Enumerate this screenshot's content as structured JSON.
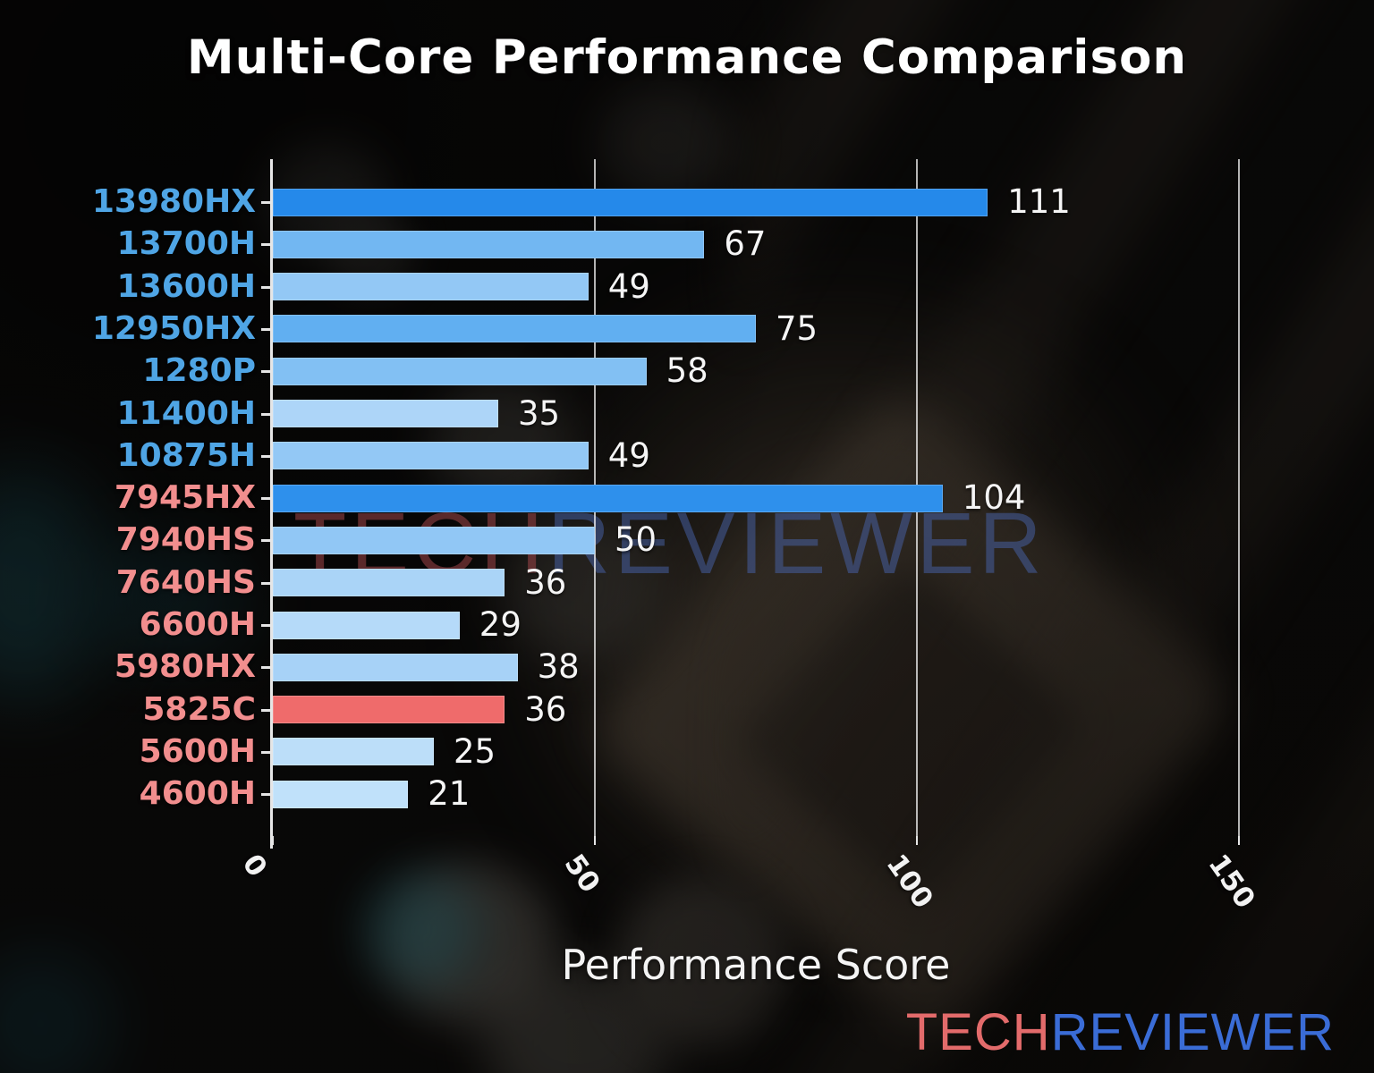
{
  "title": "Multi-Core Performance Comparison",
  "watermark": {
    "tech": "TECH",
    "reviewer": "REVIEWER",
    "tech_color": "rgba(158,70,72,0.55)",
    "reviewer_color": "rgba(72,100,172,0.5)"
  },
  "logo": {
    "tech": "TECH",
    "reviewer": "REVIEWER",
    "tech_color": "#e36b6b",
    "reviewer_color": "#3a6cd6"
  },
  "chart_data": {
    "type": "bar",
    "orientation": "horizontal",
    "title": "Multi-Core Performance Comparison",
    "xlabel": "Performance Score",
    "xlim": [
      0,
      165
    ],
    "grid": true,
    "legend_position": "none",
    "xticks": [
      {
        "value": 0,
        "label": "0"
      },
      {
        "value": 50,
        "label": "50"
      },
      {
        "value": 100,
        "label": "100"
      },
      {
        "value": 150,
        "label": "150"
      }
    ],
    "categories": [
      "13980HX",
      "13700H",
      "13600H",
      "12950HX",
      "1280P",
      "11400H",
      "10875H",
      "7945HX",
      "7940HS",
      "7640HS",
      "6600H",
      "5980HX",
      "5825C",
      "5600H",
      "4600H"
    ],
    "values": [
      111,
      67,
      49,
      75,
      58,
      35,
      49,
      104,
      50,
      36,
      29,
      38,
      36,
      25,
      21
    ],
    "bars": [
      {
        "label": "13980HX",
        "value": 111,
        "brand": "intel",
        "bar_color": "#2589ea",
        "label_color": "#4fa5e5"
      },
      {
        "label": "13700H",
        "value": 67,
        "brand": "intel",
        "bar_color": "#72b7f2",
        "label_color": "#4fa5e5"
      },
      {
        "label": "13600H",
        "value": 49,
        "brand": "intel",
        "bar_color": "#93c8f5",
        "label_color": "#4fa5e5"
      },
      {
        "label": "12950HX",
        "value": 75,
        "brand": "intel",
        "bar_color": "#61aff1",
        "label_color": "#4fa5e5"
      },
      {
        "label": "1280P",
        "value": 58,
        "brand": "intel",
        "bar_color": "#82c0f3",
        "label_color": "#4fa5e5"
      },
      {
        "label": "11400H",
        "value": 35,
        "brand": "intel",
        "bar_color": "#add5f8",
        "label_color": "#4fa5e5"
      },
      {
        "label": "10875H",
        "value": 49,
        "brand": "intel",
        "bar_color": "#93c8f5",
        "label_color": "#4fa5e5"
      },
      {
        "label": "7945HX",
        "value": 104,
        "brand": "amd",
        "bar_color": "#2e90ec",
        "label_color": "#f28e8e"
      },
      {
        "label": "7940HS",
        "value": 50,
        "brand": "amd",
        "bar_color": "#91c7f5",
        "label_color": "#f28e8e"
      },
      {
        "label": "7640HS",
        "value": 36,
        "brand": "amd",
        "bar_color": "#aad4f7",
        "label_color": "#f28e8e"
      },
      {
        "label": "6600H",
        "value": 29,
        "brand": "amd",
        "bar_color": "#b5daf9",
        "label_color": "#f28e8e"
      },
      {
        "label": "5980HX",
        "value": 38,
        "brand": "amd",
        "bar_color": "#a7d2f7",
        "label_color": "#f28e8e"
      },
      {
        "label": "5825C",
        "value": 36,
        "brand": "amd",
        "bar_color": "#ef6b6b",
        "label_color": "#f28e8e",
        "highlight": true
      },
      {
        "label": "5600H",
        "value": 25,
        "brand": "amd",
        "bar_color": "#bcdef9",
        "label_color": "#f28e8e"
      },
      {
        "label": "4600H",
        "value": 21,
        "brand": "amd",
        "bar_color": "#c0e1fa",
        "label_color": "#f28e8e"
      }
    ],
    "value_label_color": "#f5f5f5",
    "axis_color": "#e6e6e6",
    "grid_color": "rgba(255,255,255,0.7)"
  }
}
